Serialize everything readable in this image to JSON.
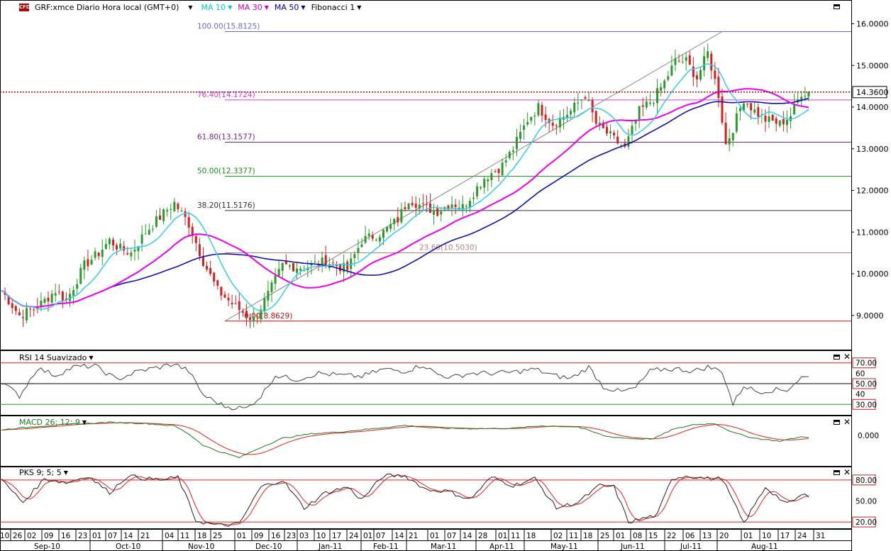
{
  "header": {
    "logo_text": "CFD",
    "symbol": "GRF:xmce Diario Hora local (GMT+0)",
    "indicators": [
      {
        "label": "MA 10",
        "color": "#00cccc"
      },
      {
        "label": "MA 30",
        "color": "#cc00cc"
      },
      {
        "label": "MA 50",
        "color": "#000099"
      },
      {
        "label": "Fibonacci 1",
        "color": "#000000"
      }
    ]
  },
  "chart_data": [
    {
      "type": "candlestick",
      "title": "GRF:xmce Diario Hora local (GMT+0)",
      "ylim": [
        8.4,
        16.4
      ],
      "y_ticks": [
        "16.0000",
        "15.0000",
        "14.0000",
        "13.0000",
        "12.0000",
        "11.0000",
        "10.0000",
        "9.0000"
      ],
      "last_price": "14.3600",
      "last_price_value": 14.36,
      "series": [
        {
          "name": "MA 10",
          "color": "#33ccee"
        },
        {
          "name": "MA 30",
          "color": "#ee00ee"
        },
        {
          "name": "MA 50",
          "color": "#1010b0"
        }
      ],
      "fibonacci": [
        {
          "label": "100.00(15.8125)",
          "value": 15.8125,
          "color": "#6a6ae0"
        },
        {
          "label": "76.40(14.1724)",
          "value": 14.1724,
          "color": "#d040d0"
        },
        {
          "label": "61.80(13.1577)",
          "value": 13.1577,
          "color": "#802080"
        },
        {
          "label": "50.00(12.3377)",
          "value": 12.3377,
          "color": "#1b8a1b"
        },
        {
          "label": "38.20(11.5176)",
          "value": 11.5176,
          "color": "#333333"
        },
        {
          "label": "23.60(10.5030)",
          "value": 10.503,
          "color": "#c08080"
        },
        {
          "label": "0.00(8.8629)",
          "value": 8.8629,
          "color": "#c01010"
        }
      ],
      "path": [
        [
          0,
          9.6
        ],
        [
          5,
          9.0
        ],
        [
          10,
          9.2
        ],
        [
          15,
          9.6
        ],
        [
          18,
          9.35
        ],
        [
          23,
          10.2
        ],
        [
          27,
          10.5
        ],
        [
          30,
          10.8
        ],
        [
          33,
          10.6
        ],
        [
          36,
          10.5
        ],
        [
          40,
          11.0
        ],
        [
          45,
          11.45
        ],
        [
          48,
          11.7
        ],
        [
          52,
          11.2
        ],
        [
          56,
          10.3
        ],
        [
          60,
          9.6
        ],
        [
          65,
          9.2
        ],
        [
          70,
          8.9
        ],
        [
          74,
          9.5
        ],
        [
          78,
          10.2
        ],
        [
          84,
          10.15
        ],
        [
          90,
          10.3
        ],
        [
          96,
          10.1
        ],
        [
          100,
          10.8
        ],
        [
          106,
          11.0
        ],
        [
          110,
          11.3
        ],
        [
          113,
          11.8
        ],
        [
          117,
          11.6
        ],
        [
          121,
          11.5
        ],
        [
          125,
          11.7
        ],
        [
          128,
          11.6
        ],
        [
          134,
          12.3
        ],
        [
          139,
          12.6
        ],
        [
          142,
          13.0
        ],
        [
          146,
          13.7
        ],
        [
          149,
          14.0
        ],
        [
          153,
          13.6
        ],
        [
          158,
          13.9
        ],
        [
          162,
          14.3
        ],
        [
          165,
          13.6
        ],
        [
          169,
          13.3
        ],
        [
          173,
          13.0
        ],
        [
          177,
          13.9
        ],
        [
          181,
          14.2
        ],
        [
          184,
          14.6
        ],
        [
          187,
          15.1
        ],
        [
          190,
          15.1
        ],
        [
          193,
          14.7
        ],
        [
          196,
          15.3
        ],
        [
          199,
          14.3
        ],
        [
          201,
          13.1
        ],
        [
          203,
          13.5
        ],
        [
          206,
          14.2
        ],
        [
          209,
          13.9
        ],
        [
          212,
          13.7
        ],
        [
          216,
          13.6
        ],
        [
          219,
          13.8
        ],
        [
          222,
          14.35
        ]
      ]
    },
    {
      "type": "line",
      "title": "RSI 14 Suavizado",
      "ylim": [
        22,
        78
      ],
      "y_ticks": [
        "70.00",
        "60",
        "50.00",
        "40",
        "30.00"
      ],
      "reference_lines": [
        70,
        50,
        30
      ],
      "path": [
        [
          0,
          52
        ],
        [
          5,
          38
        ],
        [
          10,
          65
        ],
        [
          15,
          58
        ],
        [
          20,
          66
        ],
        [
          26,
          67
        ],
        [
          32,
          54
        ],
        [
          38,
          62
        ],
        [
          44,
          66
        ],
        [
          48,
          69
        ],
        [
          52,
          62
        ],
        [
          56,
          39
        ],
        [
          62,
          28
        ],
        [
          68,
          26
        ],
        [
          72,
          38
        ],
        [
          76,
          58
        ],
        [
          82,
          54
        ],
        [
          88,
          60
        ],
        [
          94,
          58
        ],
        [
          100,
          57
        ],
        [
          106,
          64
        ],
        [
          112,
          62
        ],
        [
          117,
          68
        ],
        [
          121,
          59
        ],
        [
          125,
          56
        ],
        [
          130,
          60
        ],
        [
          136,
          60
        ],
        [
          142,
          61
        ],
        [
          148,
          64
        ],
        [
          153,
          58
        ],
        [
          158,
          55
        ],
        [
          163,
          66
        ],
        [
          167,
          47
        ],
        [
          172,
          42
        ],
        [
          176,
          46
        ],
        [
          180,
          62
        ],
        [
          184,
          64
        ],
        [
          188,
          64
        ],
        [
          192,
          62
        ],
        [
          196,
          66
        ],
        [
          200,
          62
        ],
        [
          203,
          30
        ],
        [
          206,
          48
        ],
        [
          210,
          42
        ],
        [
          214,
          44
        ],
        [
          218,
          44
        ],
        [
          222,
          56
        ]
      ]
    },
    {
      "type": "line",
      "title": "MACD 26; 12; 9",
      "ylim": [
        -1.0,
        0.55
      ],
      "y_ticks": [
        "0.000"
      ],
      "series": [
        {
          "name": "MACD",
          "color": "#1e7a1e"
        },
        {
          "name": "Signal",
          "color": "#e8201e"
        }
      ],
      "path": [
        [
          0,
          0.2
        ],
        [
          10,
          0.32
        ],
        [
          20,
          0.4
        ],
        [
          30,
          0.46
        ],
        [
          40,
          0.42
        ],
        [
          48,
          0.34
        ],
        [
          52,
          0.05
        ],
        [
          56,
          -0.35
        ],
        [
          60,
          -0.55
        ],
        [
          66,
          -0.78
        ],
        [
          72,
          -0.42
        ],
        [
          78,
          -0.1
        ],
        [
          86,
          0.06
        ],
        [
          94,
          0.12
        ],
        [
          104,
          0.25
        ],
        [
          112,
          0.35
        ],
        [
          120,
          0.26
        ],
        [
          130,
          0.24
        ],
        [
          142,
          0.25
        ],
        [
          150,
          0.34
        ],
        [
          160,
          0.3
        ],
        [
          168,
          -0.04
        ],
        [
          176,
          -0.12
        ],
        [
          181,
          -0.12
        ],
        [
          186,
          0.2
        ],
        [
          192,
          0.38
        ],
        [
          198,
          0.42
        ],
        [
          203,
          0.1
        ],
        [
          209,
          -0.1
        ],
        [
          216,
          -0.2
        ],
        [
          222,
          -0.05
        ]
      ]
    },
    {
      "type": "line",
      "title": "PKS 9; 5; 5",
      "ylim": [
        12,
        93
      ],
      "y_ticks": [
        "80.00",
        "50.00",
        "20.00"
      ],
      "reference_lines": [
        80,
        20
      ],
      "series": [
        {
          "name": "%K",
          "color": "#222222"
        },
        {
          "name": "%D",
          "color": "#e8201e"
        }
      ],
      "path": [
        [
          0,
          80
        ],
        [
          6,
          48
        ],
        [
          12,
          82
        ],
        [
          18,
          76
        ],
        [
          24,
          86
        ],
        [
          30,
          62
        ],
        [
          35,
          86
        ],
        [
          40,
          82
        ],
        [
          45,
          80
        ],
        [
          49,
          84
        ],
        [
          54,
          22
        ],
        [
          60,
          15
        ],
        [
          66,
          17
        ],
        [
          72,
          70
        ],
        [
          78,
          80
        ],
        [
          84,
          40
        ],
        [
          90,
          62
        ],
        [
          96,
          70
        ],
        [
          100,
          52
        ],
        [
          106,
          86
        ],
        [
          112,
          86
        ],
        [
          118,
          66
        ],
        [
          124,
          64
        ],
        [
          130,
          52
        ],
        [
          136,
          84
        ],
        [
          142,
          72
        ],
        [
          148,
          82
        ],
        [
          154,
          40
        ],
        [
          160,
          48
        ],
        [
          166,
          72
        ],
        [
          170,
          70
        ],
        [
          174,
          20
        ],
        [
          182,
          30
        ],
        [
          186,
          82
        ],
        [
          190,
          86
        ],
        [
          196,
          82
        ],
        [
          200,
          82
        ],
        [
          206,
          18
        ],
        [
          212,
          70
        ],
        [
          218,
          45
        ],
        [
          222,
          58
        ]
      ]
    }
  ],
  "date_axis": {
    "days": [
      "10",
      "26",
      "02",
      "09",
      "16",
      "23",
      "01",
      "07",
      "14",
      "21",
      "04",
      "11",
      "18",
      "25",
      "01",
      "09",
      "16",
      "23",
      "03",
      "10",
      "17",
      "24",
      "01",
      "07",
      "14",
      "21",
      "01",
      "07",
      "14",
      "28",
      "01",
      "11",
      "18",
      "02",
      "11",
      "18",
      "25",
      "01",
      "08",
      "15",
      "22",
      "06",
      "13",
      "20",
      "01",
      "10",
      "17",
      "24",
      "31"
    ],
    "months": [
      "Sep-10",
      "Oct-10",
      "Nov-10",
      "Dec-10",
      "Jan-11",
      "Feb-11",
      "Mar-11",
      "Apr-11",
      "May-11",
      "Jun-11",
      "Jul-11",
      "Aug-11"
    ]
  },
  "pane_titles": {
    "rsi": "RSI 14 Suavizado",
    "macd": "MACD 26; 12; 9",
    "pks": "PKS 9; 5; 5"
  },
  "colors": {
    "up": "#2a9a2a",
    "down": "#d42020",
    "price_line": "#c00000",
    "red_band": "#e02020",
    "grid_line": "#000000"
  }
}
